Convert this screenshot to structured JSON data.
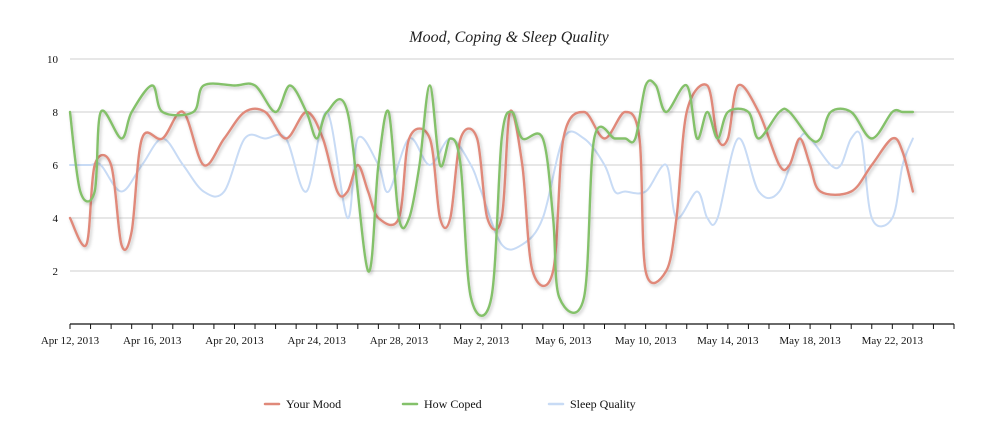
{
  "chart_data": {
    "type": "line",
    "title": "Mood, Coping & Sleep Quality",
    "xlabel": "",
    "ylabel": "",
    "ylim": [
      0,
      10
    ],
    "yticks": [
      2,
      4,
      6,
      8,
      10
    ],
    "x_range_days": [
      0,
      43
    ],
    "xticks": [
      {
        "day": 0,
        "label": "Apr 12, 2013"
      },
      {
        "day": 4,
        "label": "Apr 16, 2013"
      },
      {
        "day": 8,
        "label": "Apr 20, 2013"
      },
      {
        "day": 12,
        "label": "Apr 24, 2013"
      },
      {
        "day": 16,
        "label": "Apr 28, 2013"
      },
      {
        "day": 20,
        "label": "May 2, 2013"
      },
      {
        "day": 24,
        "label": "May 6, 2013"
      },
      {
        "day": 28,
        "label": "May 10, 2013"
      },
      {
        "day": 32,
        "label": "May 14, 2013"
      },
      {
        "day": 36,
        "label": "May 18, 2013"
      },
      {
        "day": 40,
        "label": "May 22, 2013"
      }
    ],
    "grid": true,
    "legend_position": "bottom-center",
    "series": [
      {
        "name": "Your Mood",
        "color": "#e0897a",
        "points": [
          [
            0,
            4
          ],
          [
            0.8,
            3
          ],
          [
            1.2,
            6
          ],
          [
            2,
            6
          ],
          [
            2.5,
            3
          ],
          [
            3,
            3.5
          ],
          [
            3.5,
            7
          ],
          [
            4.5,
            7
          ],
          [
            5.5,
            8
          ],
          [
            6.5,
            6
          ],
          [
            7.5,
            7
          ],
          [
            8.5,
            8
          ],
          [
            9.5,
            8
          ],
          [
            10.5,
            7
          ],
          [
            11.5,
            8
          ],
          [
            12.3,
            7
          ],
          [
            13,
            5
          ],
          [
            13.5,
            5
          ],
          [
            14,
            6
          ],
          [
            14.5,
            5
          ],
          [
            15,
            4
          ],
          [
            16,
            4
          ],
          [
            16.5,
            7
          ],
          [
            17.5,
            7
          ],
          [
            18,
            4
          ],
          [
            18.5,
            4
          ],
          [
            19,
            7
          ],
          [
            19.8,
            7
          ],
          [
            20.3,
            4
          ],
          [
            21,
            4
          ],
          [
            21.4,
            8
          ],
          [
            22,
            6
          ],
          [
            22.5,
            2
          ],
          [
            23.5,
            2
          ],
          [
            24,
            7
          ],
          [
            25,
            8
          ],
          [
            26,
            7
          ],
          [
            27,
            8
          ],
          [
            27.7,
            7
          ],
          [
            28,
            2
          ],
          [
            29,
            2
          ],
          [
            29.5,
            4
          ],
          [
            30,
            8
          ],
          [
            31,
            9
          ],
          [
            31.5,
            7
          ],
          [
            32,
            7
          ],
          [
            32.5,
            9
          ],
          [
            33.5,
            8
          ],
          [
            34.5,
            6
          ],
          [
            35,
            6
          ],
          [
            35.5,
            7
          ],
          [
            36,
            6
          ],
          [
            36.5,
            5
          ],
          [
            38,
            5
          ],
          [
            39,
            6
          ],
          [
            40,
            7
          ],
          [
            40.5,
            6.5
          ],
          [
            41,
            5
          ]
        ]
      },
      {
        "name": "How Coped",
        "color": "#84c16a",
        "points": [
          [
            0,
            8
          ],
          [
            0.5,
            5
          ],
          [
            1.2,
            5
          ],
          [
            1.5,
            8
          ],
          [
            2.5,
            7
          ],
          [
            3,
            8
          ],
          [
            4,
            9
          ],
          [
            4.5,
            8
          ],
          [
            6,
            8
          ],
          [
            6.5,
            9
          ],
          [
            8,
            9
          ],
          [
            9,
            9
          ],
          [
            10,
            8
          ],
          [
            10.7,
            9
          ],
          [
            11.5,
            8
          ],
          [
            12,
            7
          ],
          [
            12.5,
            8
          ],
          [
            13.5,
            8
          ],
          [
            14.5,
            2
          ],
          [
            15,
            6
          ],
          [
            15.5,
            8
          ],
          [
            16,
            4
          ],
          [
            16.5,
            4
          ],
          [
            17,
            6
          ],
          [
            17.5,
            9
          ],
          [
            18,
            6
          ],
          [
            18.5,
            7
          ],
          [
            19,
            6
          ],
          [
            19.5,
            1
          ],
          [
            20.5,
            1
          ],
          [
            21,
            7
          ],
          [
            21.5,
            8
          ],
          [
            22,
            7
          ],
          [
            23,
            7
          ],
          [
            23.5,
            4
          ],
          [
            23.8,
            1
          ],
          [
            25,
            1
          ],
          [
            25.5,
            7
          ],
          [
            26.5,
            7
          ],
          [
            27,
            7
          ],
          [
            27.5,
            7
          ],
          [
            28,
            9
          ],
          [
            28.5,
            9
          ],
          [
            29,
            8
          ],
          [
            30,
            9
          ],
          [
            30.5,
            7
          ],
          [
            31,
            8
          ],
          [
            31.5,
            7
          ],
          [
            32,
            8
          ],
          [
            33,
            8
          ],
          [
            33.5,
            7
          ],
          [
            34.5,
            8
          ],
          [
            35,
            8
          ],
          [
            36,
            7
          ],
          [
            36.5,
            7
          ],
          [
            37,
            8
          ],
          [
            38,
            8
          ],
          [
            39,
            7
          ],
          [
            40,
            8
          ],
          [
            40.5,
            8
          ],
          [
            41,
            8
          ]
        ]
      },
      {
        "name": "Sleep Quality",
        "color": "#c8dbf5",
        "points": [
          [
            0,
            6
          ],
          [
            1,
            6
          ],
          [
            1.5,
            6
          ],
          [
            2.5,
            5
          ],
          [
            3.5,
            6
          ],
          [
            4.5,
            7
          ],
          [
            5.5,
            6
          ],
          [
            6.5,
            5
          ],
          [
            7.5,
            5
          ],
          [
            8.5,
            7
          ],
          [
            9.5,
            7
          ],
          [
            10.5,
            7
          ],
          [
            11.5,
            5
          ],
          [
            12.5,
            8
          ],
          [
            13.5,
            4
          ],
          [
            14,
            7
          ],
          [
            15,
            6
          ],
          [
            15.5,
            5
          ],
          [
            16.5,
            7
          ],
          [
            17.5,
            6
          ],
          [
            18.5,
            7
          ],
          [
            19.5,
            6
          ],
          [
            20,
            5
          ],
          [
            21,
            3
          ],
          [
            22,
            3
          ],
          [
            23,
            4
          ],
          [
            24,
            7
          ],
          [
            25,
            7
          ],
          [
            26,
            6
          ],
          [
            26.5,
            5
          ],
          [
            27,
            5
          ],
          [
            28,
            5
          ],
          [
            29,
            6
          ],
          [
            29.5,
            4
          ],
          [
            30.5,
            5
          ],
          [
            31,
            4
          ],
          [
            31.5,
            4
          ],
          [
            32.5,
            7
          ],
          [
            33.5,
            5
          ],
          [
            34.5,
            5
          ],
          [
            35.5,
            7
          ],
          [
            36,
            7
          ],
          [
            37,
            6
          ],
          [
            37.5,
            6
          ],
          [
            38,
            7
          ],
          [
            38.5,
            7
          ],
          [
            39,
            4
          ],
          [
            40,
            4
          ],
          [
            40.5,
            6
          ],
          [
            41,
            7
          ]
        ]
      }
    ]
  }
}
